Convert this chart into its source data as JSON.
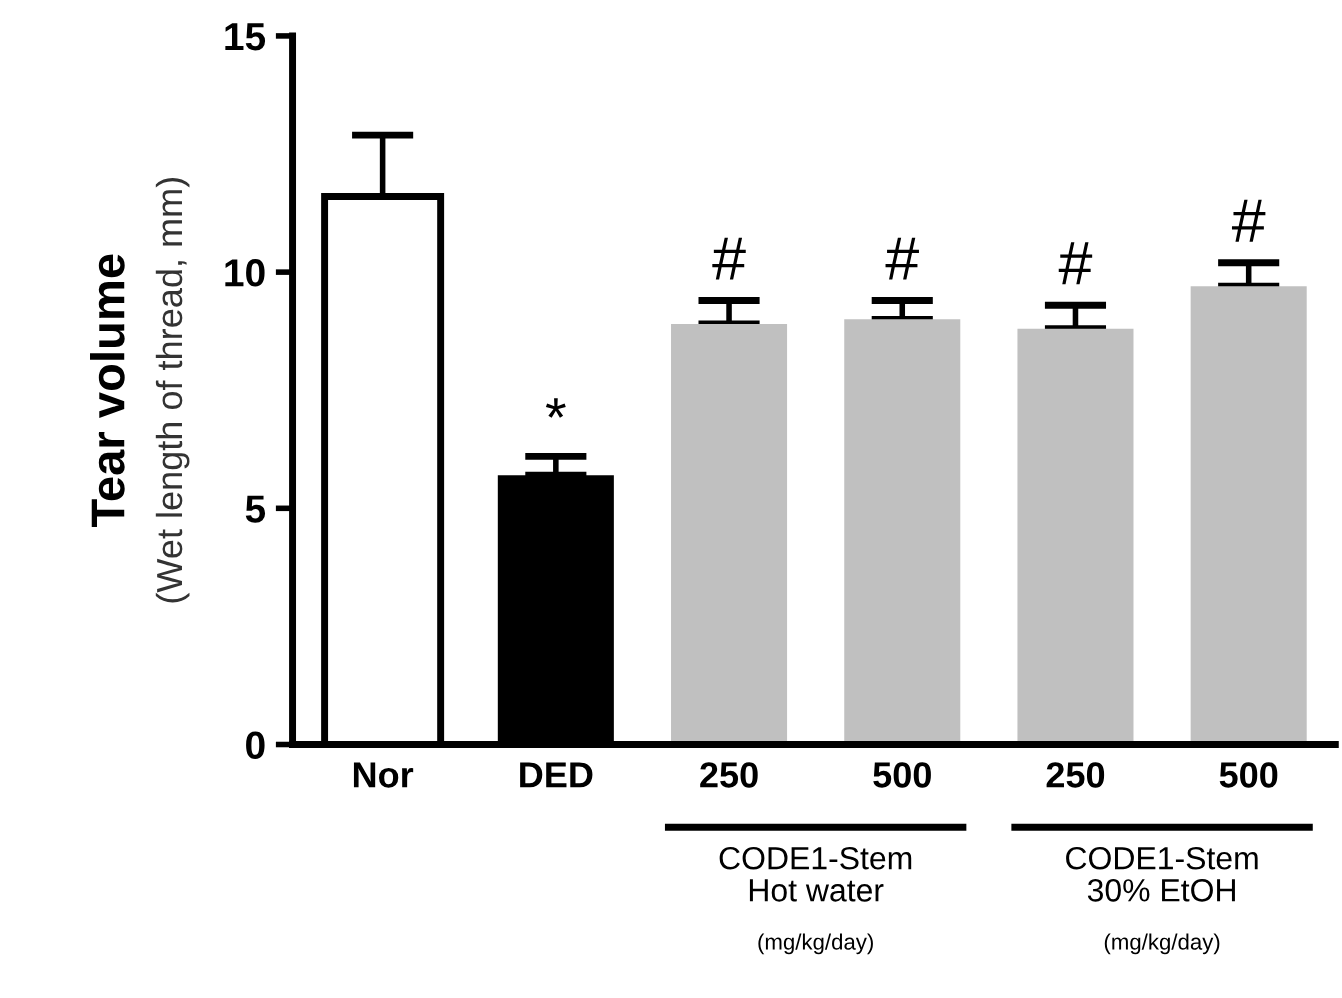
{
  "chart_data": {
    "type": "bar",
    "ylabel": "Tear volume",
    "categories": [
      "Nor",
      "DED",
      "250",
      "500",
      "250",
      "500"
    ],
    "values": [
      11.6,
      5.7,
      8.9,
      9.0,
      8.8,
      9.7
    ],
    "colors": [
      "#ffffff",
      "#000000",
      "#c0c0c0",
      "#c0c0c0",
      "#c0c0c0",
      "#c0c0c0"
    ],
    "errors": [
      [
        11.6,
        12.9
      ],
      [
        5.7,
        6.1
      ],
      [
        8.9,
        9.4
      ],
      [
        9.0,
        9.4
      ],
      [
        8.8,
        9.3
      ],
      [
        9.7,
        10.2
      ]
    ],
    "ylim": [
      0,
      15
    ],
    "yticks": [
      0,
      5,
      10,
      15
    ],
    "grid": false,
    "legend": false,
    "annotations": [
      "(Wet length of thread, mm)",
      "CODE1-Stem\nHot water",
      "(mg/kg/day)",
      "CODE1-Stem\n30% EtOH",
      "(mg/kg/day)",
      "*",
      "#",
      "#",
      "#",
      "#"
    ]
  }
}
